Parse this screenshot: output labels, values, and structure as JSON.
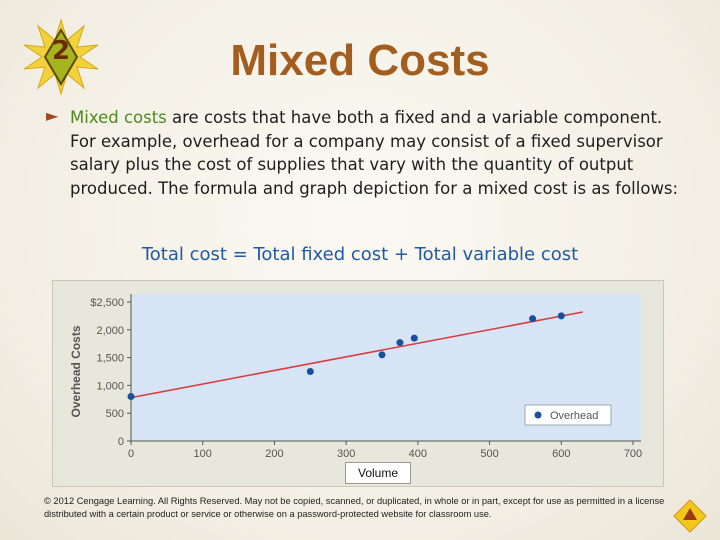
{
  "slide": {
    "number": "2",
    "title": "Mixed Costs",
    "paragraph_highlight": "Mixed costs",
    "paragraph_rest": " are costs that have both a fixed and a variable component. For example, overhead for a company may consist of a fixed supervisor salary plus the cost of supplies that vary with the quantity of output produced. The formula and graph depiction for a mixed cost is as follows:",
    "formula": "Total cost = Total fixed cost + Total variable cost",
    "copyright": "© 2012 Cengage Learning. All Rights Reserved. May not be copied, scanned, or duplicated, in whole or in part, except for use as permitted in a license distributed with a certain product or service or otherwise on a password-protected website for classroom use.",
    "colors": {
      "title": "#a35d1e",
      "highlight": "#4d8a22",
      "formula": "#1f5aa8",
      "badge": "#f2c61a"
    },
    "icons": {
      "badge": "burst-badge-icon",
      "bullet": "triangle-bullet-icon",
      "nav": "next-arrow-icon"
    }
  },
  "chart_data": {
    "type": "scatter",
    "xlabel": "Volume",
    "ylabel": "Overhead Costs",
    "xlim": [
      0,
      700
    ],
    "ylim": [
      0,
      2500
    ],
    "x_ticks": [
      "0",
      "100",
      "200",
      "300",
      "400",
      "500",
      "600",
      "700"
    ],
    "y_ticks": [
      "0",
      "500",
      "1,000",
      "1,500",
      "2,000",
      "$2,500"
    ],
    "grid": false,
    "legend": "bottom-right",
    "series": [
      {
        "name": "Overhead",
        "color": "#1a4fa0",
        "points": [
          {
            "x": 0,
            "y": 800
          },
          {
            "x": 250,
            "y": 1250
          },
          {
            "x": 350,
            "y": 1550
          },
          {
            "x": 375,
            "y": 1770
          },
          {
            "x": 395,
            "y": 1850
          },
          {
            "x": 560,
            "y": 2200
          },
          {
            "x": 600,
            "y": 2250
          }
        ]
      }
    ],
    "trend_line": {
      "color": "#d93a3a",
      "x": [
        0,
        630
      ],
      "y": [
        780,
        2320
      ]
    }
  }
}
